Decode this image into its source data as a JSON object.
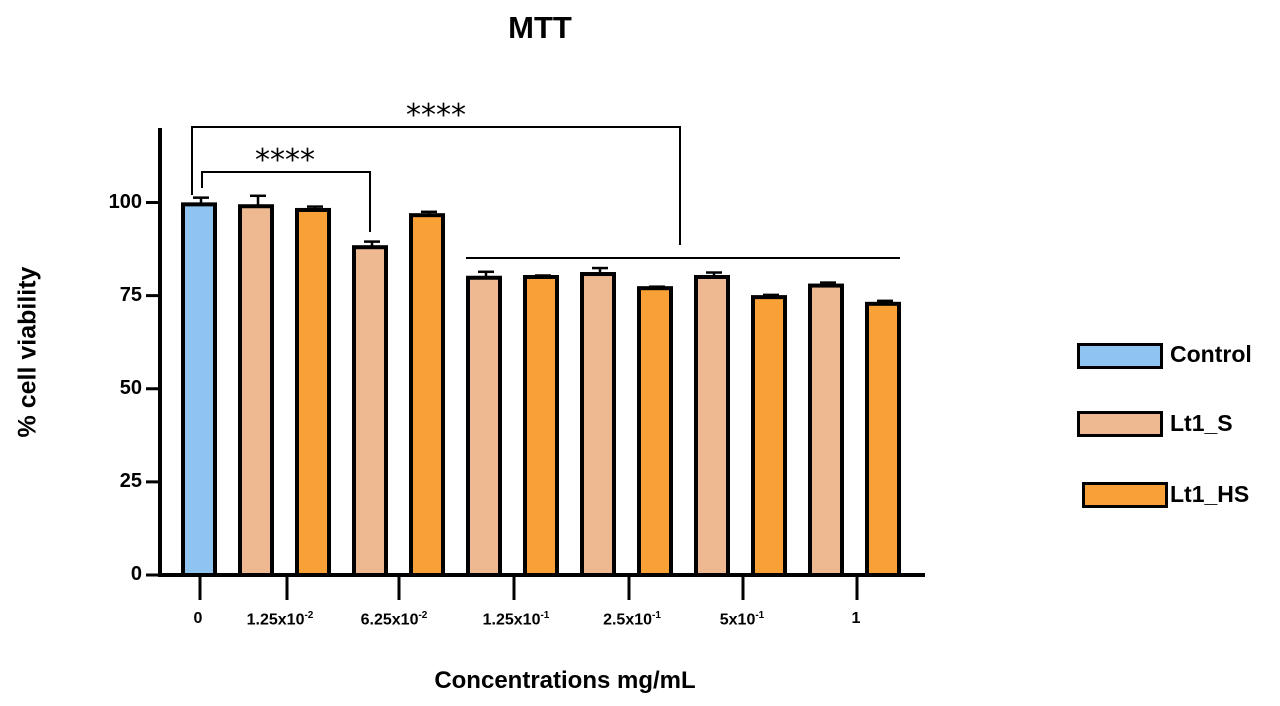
{
  "chart_data": {
    "type": "bar",
    "title": "MTT",
    "xlabel": "Concentrations mg/mL",
    "ylabel": "% cell viability",
    "ylim": [
      0,
      120
    ],
    "yticks": [
      0,
      25,
      50,
      75,
      100
    ],
    "grid": false,
    "legend_position": "right",
    "categories": [
      {
        "base": "0",
        "exp": ""
      },
      {
        "base": "1.25x10",
        "exp": "-2"
      },
      {
        "base": "6.25x10",
        "exp": "-2"
      },
      {
        "base": "1.25x10",
        "exp": "-1"
      },
      {
        "base": "2.5x10",
        "exp": "-1"
      },
      {
        "base": "5x10",
        "exp": "-1"
      },
      {
        "base": "1",
        "exp": ""
      }
    ],
    "series": [
      {
        "name": "Control",
        "color": "#8ec4ef",
        "values": [
          99.5,
          null,
          null,
          null,
          null,
          null,
          null
        ],
        "errors": [
          1.8,
          null,
          null,
          null,
          null,
          null,
          null
        ]
      },
      {
        "name": "Lt1_S",
        "color": "#eeb890",
        "values": [
          null,
          99.0,
          88.0,
          79.8,
          80.8,
          80.0,
          77.7
        ],
        "errors": [
          null,
          2.8,
          1.5,
          1.6,
          1.6,
          1.2,
          0.8
        ]
      },
      {
        "name": "Lt1_HS",
        "color": "#f9a037",
        "values": [
          null,
          98.0,
          96.6,
          80.0,
          77.0,
          74.6,
          72.8
        ],
        "errors": [
          null,
          0.9,
          0.9,
          0.4,
          0.4,
          0.6,
          0.8
        ]
      }
    ],
    "annotations": [
      {
        "text": "****",
        "from_category": 0,
        "to_category": 2
      },
      {
        "text": "****",
        "from_category": 0,
        "to_category": 3
      }
    ]
  }
}
